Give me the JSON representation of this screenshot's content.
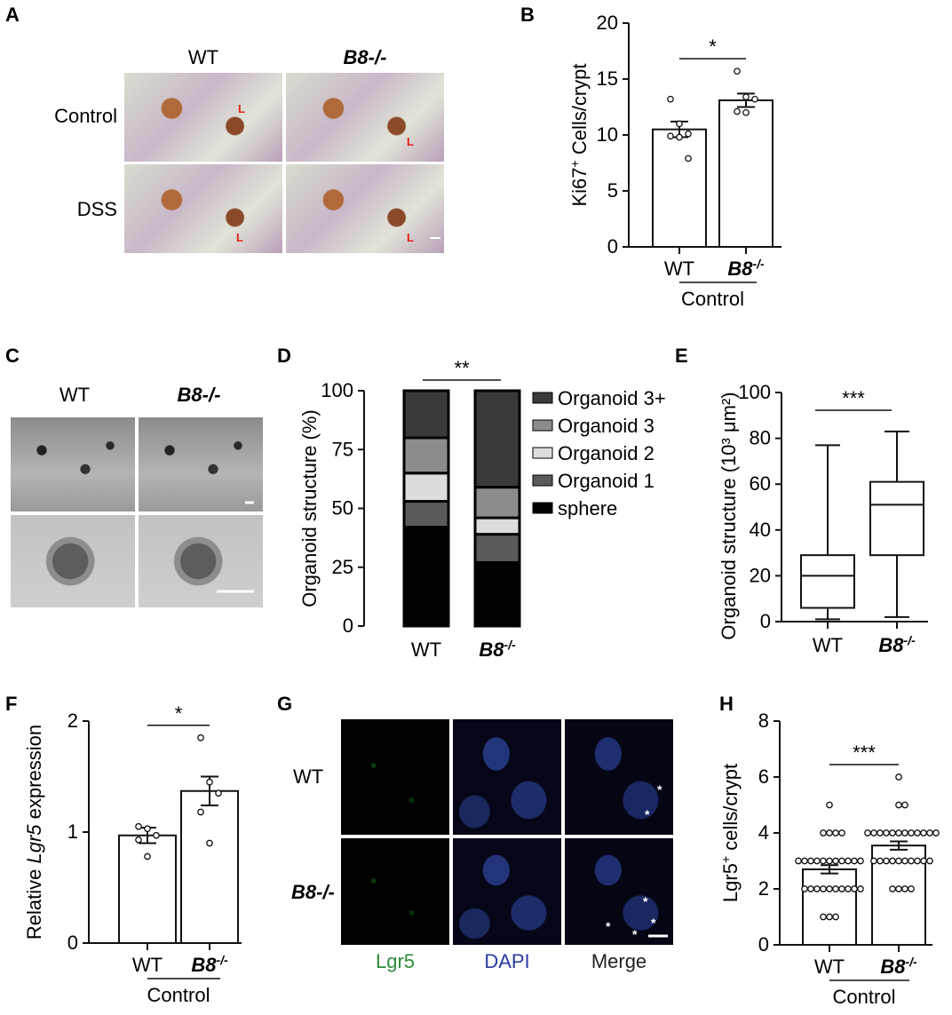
{
  "panels": {
    "A": {
      "letter": "A",
      "col_labels": [
        "WT",
        "B8-/-"
      ],
      "row_labels": [
        "Control",
        "DSS"
      ],
      "image_marks": "L"
    },
    "B": {
      "letter": "B"
    },
    "C": {
      "letter": "C",
      "col_labels": [
        "WT",
        "B8-/-"
      ]
    },
    "D": {
      "letter": "D"
    },
    "E": {
      "letter": "E"
    },
    "F": {
      "letter": "F"
    },
    "G": {
      "letter": "G",
      "row_labels": [
        "WT",
        "B8-/-"
      ],
      "channel_labels": [
        "Lgr5",
        "DAPI",
        "Merge"
      ],
      "image_marks": "*"
    },
    "H": {
      "letter": "H"
    }
  },
  "colors": {
    "ihc_marker": "#e0231b",
    "lgr5_label": "#2e8b3a",
    "dapi_label": "#2a3ca0",
    "merge_label": "#222222"
  },
  "chart_data": [
    {
      "panel": "B",
      "type": "bar",
      "categories": [
        "WT",
        "B8-/-"
      ],
      "values": [
        10.5,
        13.1
      ],
      "sem": [
        0.7,
        0.6
      ],
      "points": [
        [
          13.2,
          11.0,
          10.1,
          9.9,
          9.8,
          7.9
        ],
        [
          15.7,
          13.4,
          13.2,
          12.1,
          12.0
        ]
      ],
      "ylabel": "Ki67+ Cells/crypt",
      "xgroup": "Control",
      "ylim": [
        0,
        20
      ],
      "yticks": [
        0,
        5,
        10,
        15,
        20
      ],
      "significance": "*"
    },
    {
      "panel": "D",
      "type": "stacked_bar",
      "categories": [
        "WT",
        "B8-/-"
      ],
      "series": [
        {
          "name": "sphere",
          "values": [
            42,
            27
          ],
          "color": "#000000"
        },
        {
          "name": "Organoid 1",
          "values": [
            11,
            12
          ],
          "color": "#5a5a5a"
        },
        {
          "name": "Organoid 2",
          "values": [
            12,
            7
          ],
          "color": "#dcdcdc"
        },
        {
          "name": "Organoid 3",
          "values": [
            15,
            13
          ],
          "color": "#8c8c8c"
        },
        {
          "name": "Organoid 3+",
          "values": [
            20,
            41
          ],
          "color": "#3a3a3a"
        }
      ],
      "ylabel": "Organoid structure (%)",
      "ylim": [
        0,
        100
      ],
      "yticks": [
        0,
        25,
        50,
        75,
        100
      ],
      "legend_order": [
        "Organoid 3+",
        "Organoid 3",
        "Organoid 2",
        "Organoid 1",
        "sphere"
      ],
      "legend_position": "right",
      "significance": "**"
    },
    {
      "panel": "E",
      "type": "box",
      "categories": [
        "WT",
        "B8-/-"
      ],
      "boxes": [
        {
          "min": 1,
          "q1": 6,
          "median": 20,
          "q3": 29,
          "max": 77
        },
        {
          "min": 2,
          "q1": 29,
          "median": 51,
          "q3": 61,
          "max": 83
        }
      ],
      "ylabel": "Organoid structure (10³ μm²)",
      "ylim": [
        0,
        100
      ],
      "yticks": [
        0,
        20,
        40,
        60,
        80,
        100
      ],
      "significance": "***"
    },
    {
      "panel": "F",
      "type": "bar",
      "categories": [
        "WT",
        "B8-/-"
      ],
      "values": [
        0.97,
        1.37
      ],
      "sem": [
        0.07,
        0.13
      ],
      "points": [
        [
          1.05,
          1.03,
          0.97,
          0.93,
          0.78
        ],
        [
          1.85,
          1.45,
          1.35,
          1.18,
          0.9
        ]
      ],
      "ylabel": "Relative Lgr5 expression",
      "xgroup": "Control",
      "ylim": [
        0,
        2
      ],
      "yticks": [
        0,
        1,
        2
      ],
      "significance": "*"
    },
    {
      "panel": "H",
      "type": "bar",
      "categories": [
        "WT",
        "B8-/-"
      ],
      "values": [
        2.7,
        3.55
      ],
      "sem": [
        0.15,
        0.15
      ],
      "points": [
        [
          5,
          4,
          4,
          4,
          4,
          3,
          3,
          3,
          3,
          3,
          3,
          3,
          3,
          3,
          3,
          3,
          2,
          2,
          2,
          2,
          2,
          2,
          2,
          2,
          2,
          2,
          1,
          1,
          1
        ],
        [
          6,
          5,
          5,
          4,
          4,
          4,
          4,
          4,
          4,
          4,
          4,
          4,
          4,
          4,
          4,
          3,
          3,
          3,
          3,
          3,
          3,
          3,
          3,
          3,
          3,
          2,
          2,
          2,
          2
        ]
      ],
      "ylabel": "Lgr5+ cells/crypt",
      "xgroup": "Control",
      "ylim": [
        0,
        8
      ],
      "yticks": [
        0,
        2,
        4,
        6,
        8
      ],
      "significance": "***"
    }
  ]
}
